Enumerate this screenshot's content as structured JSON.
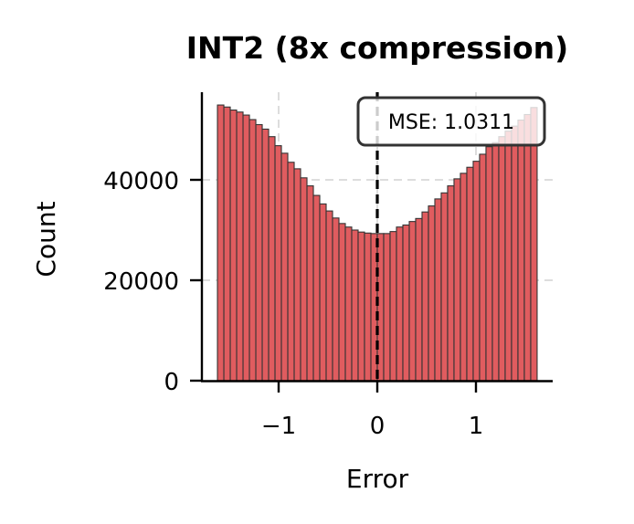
{
  "chart_data": {
    "type": "bar",
    "subtype": "histogram",
    "title": "INT2 (8x compression)",
    "xlabel": "Error",
    "ylabel": "Count",
    "xlim": [
      -1.8,
      1.75
    ],
    "ylim": [
      0,
      57500
    ],
    "xticks": [
      -1,
      0,
      1
    ],
    "xtick_labels": [
      "−1",
      "0",
      "1"
    ],
    "yticks": [
      0,
      20000,
      40000
    ],
    "ytick_labels": [
      "0",
      "20000",
      "40000"
    ],
    "grid": true,
    "bin_range": [
      -1.62,
      1.62
    ],
    "bin_count": 50,
    "bar_color": "#e05c5f",
    "bar_edge_color": "#333333",
    "values": [
      54900,
      54500,
      53900,
      53500,
      52900,
      52000,
      51000,
      50100,
      48600,
      46800,
      45300,
      43500,
      42200,
      40400,
      38800,
      36900,
      35200,
      33800,
      32400,
      31300,
      30600,
      30000,
      29600,
      29400,
      29300,
      29300,
      29300,
      29700,
      30600,
      31000,
      31700,
      32300,
      33600,
      34800,
      36200,
      37400,
      38800,
      40200,
      41300,
      42500,
      43700,
      45100,
      46600,
      47400,
      48600,
      49700,
      50700,
      51900,
      53000,
      54400
    ],
    "annotations": [
      {
        "type": "vline",
        "x": 0,
        "style": "dashed",
        "color": "#000000"
      },
      {
        "type": "textbox",
        "text": "MSE: 1.0311"
      }
    ]
  },
  "annotation": {
    "mse_label": "MSE: 1.0311"
  },
  "labels": {
    "title": "INT2 (8x compression)",
    "xlabel": "Error",
    "ylabel": "Count"
  }
}
